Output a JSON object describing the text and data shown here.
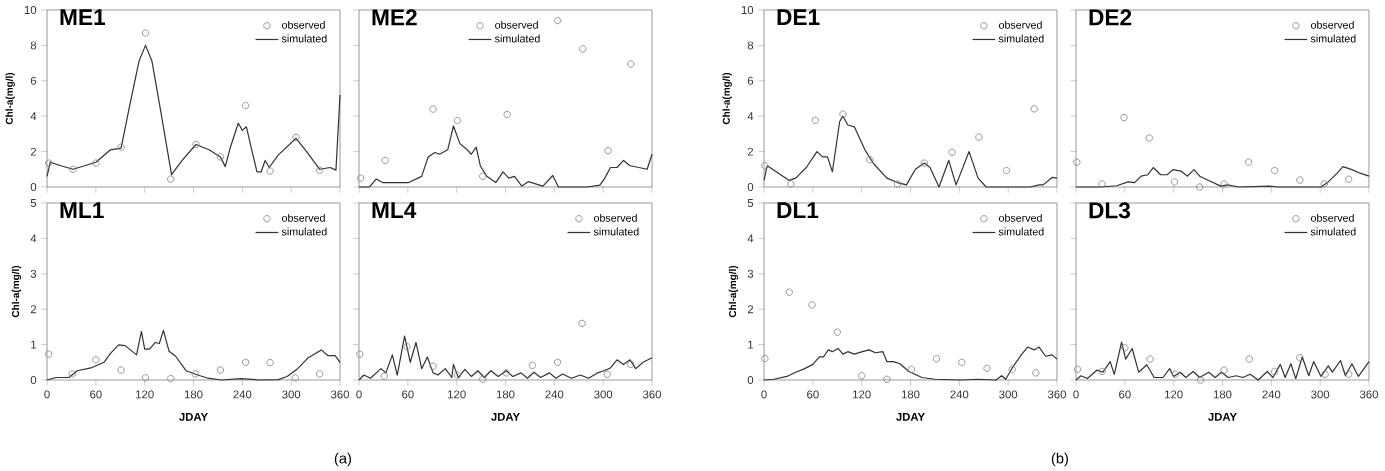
{
  "chart_data": [
    {
      "type": "line",
      "title": "ME1",
      "ylabel": "Chl-a(mg/l)",
      "xlim": [
        0,
        360
      ],
      "xticks": [
        0,
        60,
        120,
        180,
        240,
        300,
        360
      ],
      "ylim": [
        0,
        10
      ],
      "yticks": [
        0,
        2,
        4,
        6,
        8,
        10
      ],
      "tick_labels": "y",
      "legend": "top right",
      "series": [
        {
          "name": "observed",
          "type": "scatter",
          "marker": "circle",
          "color": "#7f7f7f",
          "x": [
            2,
            32,
            60,
            91,
            121,
            152,
            183,
            213,
            244,
            274,
            306,
            335
          ],
          "values": [
            1.35,
            1.0,
            1.35,
            2.25,
            8.7,
            0.45,
            2.4,
            1.7,
            4.6,
            0.9,
            2.8,
            0.95
          ]
        },
        {
          "name": "simulated",
          "type": "line",
          "line_style": "solid",
          "color": "#333333",
          "x": [
            0,
            4,
            17,
            32,
            60,
            78,
            91,
            102,
            113,
            121,
            129,
            140,
            153,
            166,
            183,
            199,
            213,
            219,
            225,
            235,
            240,
            245,
            251,
            258,
            263,
            268,
            273,
            284,
            306,
            319,
            335,
            348,
            355,
            360
          ],
          "values": [
            0.6,
            1.4,
            1.2,
            1.0,
            1.4,
            2.1,
            2.2,
            4.7,
            7.1,
            8.0,
            7.1,
            4.2,
            0.7,
            1.5,
            2.4,
            2.1,
            1.7,
            1.15,
            2.2,
            3.6,
            3.2,
            3.4,
            2.2,
            0.85,
            0.85,
            1.5,
            1.1,
            1.8,
            2.75,
            2.0,
            1.0,
            1.1,
            0.95,
            5.2
          ]
        }
      ]
    },
    {
      "type": "line",
      "title": "ME2",
      "xlim": [
        0,
        360
      ],
      "xticks": [
        0,
        60,
        120,
        180,
        240,
        300,
        360
      ],
      "ylim": [
        0,
        10
      ],
      "yticks": [
        0,
        2,
        4,
        6,
        8,
        10
      ],
      "tick_labels": false,
      "legend": "top",
      "series": [
        {
          "name": "observed",
          "type": "scatter",
          "marker": "circle",
          "color": "#7f7f7f",
          "x": [
            2,
            32,
            91,
            121,
            152,
            182,
            244,
            275,
            306,
            334
          ],
          "values": [
            0.5,
            1.5,
            4.4,
            3.75,
            0.6,
            4.1,
            9.4,
            7.8,
            2.05,
            6.95
          ]
        },
        {
          "name": "simulated",
          "type": "line",
          "line_style": "solid",
          "color": "#333333",
          "x": [
            0,
            13,
            21,
            29,
            61,
            77,
            85,
            93,
            99,
            109,
            116,
            124,
            133,
            138,
            144,
            149,
            157,
            168,
            177,
            184,
            191,
            200,
            208,
            226,
            238,
            245,
            280,
            296,
            302,
            309,
            317,
            325,
            333,
            344,
            354,
            360
          ],
          "values": [
            0,
            0,
            0.45,
            0.25,
            0.25,
            0.6,
            1.7,
            1.95,
            1.85,
            2.1,
            3.45,
            2.45,
            2.1,
            1.85,
            2.25,
            1.2,
            0.6,
            0.25,
            0.85,
            0.5,
            0.6,
            0.05,
            0.3,
            0.05,
            0.65,
            0,
            0,
            0.1,
            0.5,
            1.1,
            1.1,
            1.5,
            1.2,
            1.1,
            1.0,
            1.85
          ]
        }
      ]
    },
    {
      "type": "line",
      "title": "DE1",
      "ylabel": "Chl-a(mg/l)",
      "xlim": [
        0,
        360
      ],
      "xticks": [
        0,
        60,
        120,
        180,
        240,
        300,
        360
      ],
      "ylim": [
        0,
        10
      ],
      "yticks": [
        0,
        2,
        4,
        6,
        8,
        10
      ],
      "tick_labels": "y",
      "legend": "top right",
      "series": [
        {
          "name": "observed",
          "type": "scatter",
          "marker": "circle",
          "color": "#7f7f7f",
          "x": [
            1,
            33,
            63,
            97,
            130,
            164,
            197,
            231,
            264,
            298,
            332
          ],
          "values": [
            1.2,
            0.17,
            3.77,
            4.12,
            1.54,
            0.17,
            1.35,
            1.96,
            2.82,
            0.93,
            4.41
          ]
        },
        {
          "name": "simulated",
          "type": "line",
          "line_style": "solid",
          "color": "#333333",
          "x": [
            0,
            4,
            15,
            31,
            39,
            52,
            65,
            72,
            78,
            84,
            93,
            97,
            103,
            111,
            124,
            135,
            151,
            164,
            175,
            186,
            197,
            204,
            215,
            227,
            236,
            252,
            263,
            273,
            327,
            338,
            343,
            354,
            360
          ],
          "values": [
            0.37,
            1.2,
            0.86,
            0.37,
            0.5,
            1.1,
            2.0,
            1.7,
            1.7,
            0.86,
            3.7,
            4.0,
            3.5,
            3.4,
            2.1,
            1.3,
            0.5,
            0.25,
            0.12,
            1.0,
            1.35,
            1.1,
            0,
            1.5,
            0.12,
            2.0,
            0.5,
            0,
            0,
            0.12,
            0.12,
            0.54,
            0.5
          ]
        }
      ]
    },
    {
      "type": "line",
      "title": "DE2",
      "xlim": [
        0,
        360
      ],
      "xticks": [
        0,
        60,
        120,
        180,
        240,
        300,
        360
      ],
      "ylim": [
        0,
        10
      ],
      "yticks": [
        0,
        2,
        4,
        6,
        8,
        10
      ],
      "tick_labels": false,
      "legend": "top right",
      "series": [
        {
          "name": "observed",
          "type": "scatter",
          "marker": "circle",
          "color": "#7f7f7f",
          "x": [
            1,
            32,
            59,
            90,
            121,
            152,
            182,
            212,
            244,
            275,
            305,
            335
          ],
          "values": [
            1.4,
            0.17,
            3.92,
            2.77,
            0.29,
            0.0,
            0.17,
            1.4,
            0.93,
            0.39,
            0.17,
            0.44
          ]
        },
        {
          "name": "simulated",
          "type": "line",
          "line_style": "solid",
          "color": "#333333",
          "x": [
            0,
            29,
            50,
            64,
            72,
            80,
            88,
            95,
            104,
            112,
            119,
            129,
            137,
            145,
            152,
            163,
            178,
            186,
            200,
            237,
            248,
            301,
            309,
            320,
            328,
            339,
            349,
            360
          ],
          "values": [
            0,
            0,
            0.07,
            0.29,
            0.25,
            0.61,
            0.69,
            1.1,
            0.69,
            0.69,
            0.98,
            0.9,
            0.61,
            0.98,
            0.61,
            0.37,
            0.05,
            0.12,
            0,
            0.05,
            0,
            0,
            0.25,
            0.74,
            1.15,
            0.98,
            0.78,
            0.61
          ]
        }
      ]
    },
    {
      "type": "line",
      "title": "ML1",
      "xlabel": "JDAY",
      "ylabel": "Chl-a(mg/l)",
      "xlim": [
        0,
        360
      ],
      "xticks": [
        0,
        60,
        120,
        180,
        240,
        300,
        360
      ],
      "ylim": [
        0,
        5
      ],
      "yticks": [
        0,
        1,
        2,
        3,
        4,
        5
      ],
      "legend": "top right",
      "annotations": [
        "(a)"
      ],
      "series": [
        {
          "name": "observed",
          "type": "scatter",
          "marker": "circle",
          "color": "#7f7f7f",
          "x": [
            2,
            31,
            60,
            91,
            121,
            152,
            182,
            213,
            244,
            274,
            305,
            335
          ],
          "values": [
            0.73,
            0.17,
            0.57,
            0.28,
            0.06,
            0.04,
            0.17,
            0.28,
            0.5,
            0.49,
            0.06,
            0.17
          ]
        },
        {
          "name": "simulated",
          "type": "line",
          "line_style": "solid",
          "color": "#333333",
          "x": [
            0,
            11,
            27,
            37,
            54,
            70,
            78,
            88,
            96,
            110,
            116,
            120,
            126,
            133,
            138,
            143,
            150,
            158,
            171,
            185,
            198,
            214,
            238,
            262,
            284,
            295,
            308,
            321,
            337,
            345,
            354,
            360
          ],
          "values": [
            0,
            0.07,
            0.07,
            0.26,
            0.34,
            0.5,
            0.75,
            0.99,
            0.97,
            0.71,
            1.37,
            0.87,
            0.87,
            1.06,
            1.03,
            1.4,
            0.81,
            0.67,
            0.26,
            0.14,
            0.05,
            0,
            0.04,
            0,
            0.01,
            0.1,
            0.32,
            0.63,
            0.85,
            0.69,
            0.69,
            0.5
          ]
        }
      ]
    },
    {
      "type": "line",
      "title": "ML4",
      "xlabel": "JDAY",
      "xlim": [
        0,
        360
      ],
      "xticks": [
        0,
        60,
        120,
        180,
        240,
        300,
        360
      ],
      "ylim": [
        0,
        5
      ],
      "yticks": [
        0,
        1,
        2,
        3,
        4,
        5
      ],
      "tick_labels": "x",
      "legend": "top right",
      "series": [
        {
          "name": "observed",
          "type": "scatter",
          "marker": "circle",
          "color": "#7f7f7f",
          "x": [
            1,
            31,
            59,
            91,
            121,
            152,
            181,
            213,
            244,
            274,
            305,
            334
          ],
          "values": [
            0.73,
            0.11,
            0.94,
            0.39,
            0.14,
            0.02,
            0.2,
            0.41,
            0.5,
            1.6,
            0.16,
            0.44
          ]
        },
        {
          "name": "simulated",
          "type": "line",
          "line_style": "solid",
          "color": "#333333",
          "x": [
            0,
            6,
            14,
            27,
            33,
            41,
            47,
            56,
            63,
            70,
            77,
            84,
            91,
            97,
            106,
            114,
            116,
            122,
            130,
            138,
            146,
            154,
            162,
            171,
            181,
            189,
            199,
            207,
            215,
            223,
            234,
            242,
            250,
            261,
            272,
            282,
            293,
            301,
            309,
            317,
            325,
            333,
            340,
            349,
            360
          ],
          "values": [
            0,
            0.14,
            0.05,
            0.32,
            0.2,
            0.71,
            0.14,
            1.24,
            0.5,
            1.06,
            0.32,
            0.65,
            0.2,
            0.14,
            0.32,
            0.07,
            0.44,
            0.07,
            0.3,
            0.1,
            0.26,
            0.07,
            0.26,
            0.1,
            0.26,
            0.1,
            0.2,
            0.05,
            0.22,
            0.07,
            0.2,
            0.05,
            0.17,
            0.05,
            0.14,
            0.05,
            0.2,
            0.26,
            0.34,
            0.57,
            0.44,
            0.57,
            0.32,
            0.5,
            0.63
          ]
        }
      ]
    },
    {
      "type": "line",
      "title": "DL1",
      "xlabel": "JDAY",
      "ylabel": "Chl-a(mg/l)",
      "xlim": [
        0,
        360
      ],
      "xticks": [
        0,
        60,
        120,
        180,
        240,
        300,
        360
      ],
      "ylim": [
        0,
        5
      ],
      "yticks": [
        0,
        1,
        2,
        3,
        4,
        5
      ],
      "legend": "top right",
      "annotations": [
        "(b)"
      ],
      "series": [
        {
          "name": "observed",
          "type": "scatter",
          "marker": "circle",
          "color": "#7f7f7f",
          "x": [
            1,
            31,
            59,
            90,
            120,
            151,
            181,
            212,
            243,
            274,
            305,
            334
          ],
          "values": [
            0.61,
            2.48,
            2.12,
            1.35,
            0.12,
            0.02,
            0.3,
            0.6,
            0.5,
            0.33,
            0.3,
            0.2
          ]
        },
        {
          "name": "simulated",
          "type": "line",
          "line_style": "solid",
          "color": "#333333",
          "x": [
            0,
            12,
            28,
            39,
            50,
            60,
            68,
            73,
            79,
            84,
            91,
            97,
            103,
            111,
            121,
            129,
            137,
            146,
            151,
            159,
            167,
            178,
            194,
            210,
            242,
            263,
            285,
            292,
            297,
            305,
            316,
            324,
            332,
            338,
            346,
            354,
            360
          ],
          "values": [
            0,
            0.02,
            0.1,
            0.22,
            0.32,
            0.44,
            0.65,
            0.65,
            0.85,
            0.8,
            0.89,
            0.73,
            0.8,
            0.73,
            0.8,
            0.85,
            0.77,
            0.8,
            0.52,
            0.52,
            0.46,
            0.24,
            0.07,
            0.02,
            0,
            0.02,
            0,
            0.12,
            0.02,
            0.34,
            0.71,
            0.93,
            0.85,
            0.93,
            0.67,
            0.71,
            0.59
          ]
        }
      ]
    },
    {
      "type": "line",
      "title": "DL3",
      "xlabel": "JDAY",
      "xlim": [
        0,
        360
      ],
      "xticks": [
        0,
        60,
        120,
        180,
        240,
        300,
        360
      ],
      "ylim": [
        0,
        5
      ],
      "yticks": [
        0,
        1,
        2,
        3,
        4,
        5
      ],
      "tick_labels": "x",
      "legend": "top right",
      "series": [
        {
          "name": "observed",
          "type": "scatter",
          "marker": "circle",
          "color": "#7f7f7f",
          "x": [
            2,
            32,
            60,
            91,
            122,
            153,
            182,
            213,
            244,
            275,
            306,
            335
          ],
          "values": [
            0.3,
            0.24,
            0.91,
            0.59,
            0.16,
            0.0,
            0.28,
            0.59,
            0.24,
            0.63,
            0.16,
            0.16
          ]
        },
        {
          "name": "simulated",
          "type": "line",
          "line_style": "solid",
          "color": "#333333",
          "x": [
            0,
            6,
            14,
            26,
            33,
            42,
            47,
            56,
            61,
            69,
            77,
            87,
            96,
            107,
            115,
            120,
            128,
            135,
            144,
            152,
            163,
            171,
            179,
            187,
            197,
            205,
            214,
            224,
            235,
            242,
            251,
            257,
            264,
            270,
            278,
            286,
            292,
            301,
            310,
            315,
            325,
            331,
            339,
            347,
            360
          ],
          "values": [
            0,
            0.12,
            0.04,
            0.28,
            0.22,
            0.52,
            0.16,
            1.07,
            0.59,
            0.89,
            0.22,
            0.43,
            0.07,
            0.07,
            0.32,
            0.1,
            0.22,
            0.07,
            0.24,
            0.07,
            0.22,
            0.07,
            0.22,
            0.07,
            0.12,
            0.07,
            0.16,
            0,
            0.24,
            0.07,
            0.44,
            0.07,
            0.46,
            0.04,
            0.65,
            0.12,
            0.52,
            0.1,
            0.4,
            0.22,
            0.55,
            0.12,
            0.46,
            0.1,
            0.52
          ]
        }
      ]
    }
  ]
}
